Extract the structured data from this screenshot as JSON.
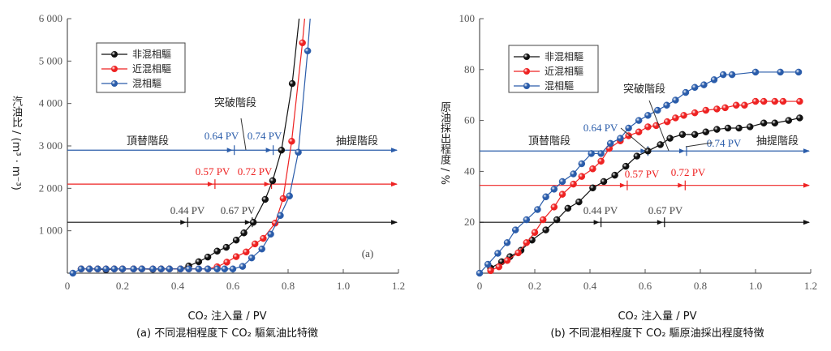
{
  "colors": {
    "black": "#111111",
    "red": "#ee2222",
    "blue": "#2a5caa"
  },
  "chart_data": [
    {
      "type": "line",
      "panel_label": "(a)",
      "xlabel": "CO₂ 注入量 / PV",
      "ylabel": "汽油比 / (m³ · m⁻³)",
      "caption": "(a) 不同混相程度下 CO₂ 驅氣油比特徵",
      "xlim": [
        0,
        1.2
      ],
      "ylim": [
        0,
        6000
      ],
      "xticks": [
        0,
        0.2,
        0.4,
        0.6,
        0.8,
        1.0,
        1.2
      ],
      "xtick_labels": [
        "0",
        "0.2",
        "0.4",
        "0.6",
        "0.8",
        "1.0",
        "1.2"
      ],
      "yticks": [
        1000,
        2000,
        3000,
        4000,
        5000,
        6000
      ],
      "ytick_labels": [
        "1 000",
        "2 000",
        "3 000",
        "4 000",
        "5 000",
        "6 000"
      ],
      "legend": {
        "position": "top-left",
        "entries": [
          "非混相驅",
          "近混相驅",
          "混相驅"
        ]
      },
      "series": [
        {
          "name": "非混相驅",
          "color": "black",
          "x": [
            0.05,
            0.08,
            0.11,
            0.14,
            0.17,
            0.2,
            0.24,
            0.27,
            0.31,
            0.34,
            0.37,
            0.41,
            0.44,
            0.476,
            0.509,
            0.543,
            0.576,
            0.612,
            0.64,
            0.674,
            0.717,
            0.744,
            0.776,
            0.815
          ],
          "y": [
            100,
            100,
            100,
            80,
            100,
            100,
            100,
            100,
            90,
            100,
            100,
            100,
            170,
            270,
            380,
            520,
            610,
            780,
            950,
            1200,
            1740,
            2180,
            2900,
            4470
          ],
          "line_end": [
            0.84,
            6000
          ]
        },
        {
          "name": "近混相驅",
          "color": "red",
          "x": [
            0.05,
            0.08,
            0.11,
            0.14,
            0.17,
            0.2,
            0.24,
            0.27,
            0.31,
            0.34,
            0.37,
            0.41,
            0.44,
            0.476,
            0.509,
            0.543,
            0.578,
            0.612,
            0.648,
            0.68,
            0.71,
            0.753,
            0.782,
            0.813,
            0.852
          ],
          "y": [
            100,
            100,
            100,
            100,
            100,
            100,
            100,
            100,
            100,
            100,
            100,
            100,
            100,
            100,
            100,
            150,
            260,
            390,
            500,
            690,
            820,
            1180,
            1760,
            3110,
            5430
          ],
          "line_end": [
            0.86,
            6000
          ]
        },
        {
          "name": "混相驅",
          "color": "blue",
          "x": [
            0.02,
            0.05,
            0.08,
            0.11,
            0.14,
            0.17,
            0.2,
            0.24,
            0.27,
            0.31,
            0.34,
            0.37,
            0.41,
            0.44,
            0.476,
            0.509,
            0.543,
            0.57,
            0.6,
            0.635,
            0.668,
            0.705,
            0.737,
            0.772,
            0.805,
            0.837,
            0.871
          ],
          "y": [
            0,
            100,
            100,
            100,
            100,
            100,
            100,
            100,
            100,
            100,
            100,
            100,
            100,
            100,
            100,
            100,
            100,
            100,
            100,
            160,
            360,
            570,
            920,
            1360,
            1820,
            2850,
            5240
          ],
          "line_end": [
            0.88,
            6000
          ]
        }
      ],
      "stage_lines": [
        {
          "color": "blue",
          "y": 2900,
          "ticks": [
            0.605,
            0.746
          ],
          "labels": [
            "0.64 PV",
            "0.74 PV"
          ]
        },
        {
          "color": "red",
          "y": 2100,
          "ticks": [
            0.535,
            0.74
          ],
          "labels": [
            "0.57 PV",
            "0.72 PV"
          ]
        },
        {
          "color": "black",
          "y": 1200,
          "ticks": [
            0.436,
            0.67
          ],
          "labels": [
            "0.44 PV",
            "0.67 PV"
          ]
        }
      ],
      "stage_labels": [
        "頂替階段",
        "突破階段",
        "抽提階段"
      ]
    },
    {
      "type": "line",
      "xlabel": "CO₂ 注入量 / PV",
      "ylabel": "原油採出程度 / %",
      "caption": "(b) 不同混相程度下 CO₂ 驅原油採出程度特徵",
      "xlim": [
        0,
        1.2
      ],
      "ylim": [
        0,
        100
      ],
      "xticks": [
        0,
        0.2,
        0.4,
        0.6,
        0.8,
        1.0,
        1.2
      ],
      "xtick_labels": [
        "0",
        "0.2",
        "0.4",
        "0.6",
        "0.8",
        "1.0",
        "1.2"
      ],
      "yticks": [
        20,
        40,
        60,
        80,
        100
      ],
      "ytick_labels": [
        "20",
        "40",
        "60",
        "80",
        "100"
      ],
      "legend": {
        "position": "top-left",
        "entries": [
          "非混相驅",
          "近混相驅",
          "混相驅"
        ]
      },
      "series": [
        {
          "name": "非混相驅",
          "color": "black",
          "x": [
            0.04,
            0.08,
            0.11,
            0.15,
            0.19,
            0.24,
            0.28,
            0.32,
            0.36,
            0.41,
            0.45,
            0.49,
            0.53,
            0.57,
            0.61,
            0.655,
            0.69,
            0.735,
            0.78,
            0.82,
            0.86,
            0.9,
            0.94,
            0.98,
            1.03,
            1.07,
            1.12,
            1.16
          ],
          "y": [
            2,
            4.5,
            6.5,
            9,
            13,
            17,
            21,
            25.5,
            28,
            33.5,
            36,
            38.5,
            42,
            46,
            48,
            50.5,
            53,
            54.5,
            54.5,
            55.5,
            56.5,
            57,
            57,
            57.5,
            59,
            59,
            60,
            61
          ]
        },
        {
          "name": "近混相驅",
          "color": "red",
          "x": [
            0.04,
            0.07,
            0.1,
            0.14,
            0.17,
            0.2,
            0.23,
            0.27,
            0.3,
            0.34,
            0.37,
            0.41,
            0.44,
            0.47,
            0.51,
            0.54,
            0.577,
            0.61,
            0.64,
            0.68,
            0.71,
            0.74,
            0.78,
            0.82,
            0.86,
            0.89,
            0.93,
            0.96,
            1.0,
            1.03,
            1.07,
            1.1,
            1.16
          ],
          "y": [
            1,
            2.5,
            5,
            8,
            12,
            16,
            21,
            26,
            31,
            35,
            38,
            41,
            44,
            49,
            52,
            54,
            55.5,
            57.5,
            58,
            59.5,
            61,
            62,
            63,
            64,
            64.5,
            65,
            66,
            66,
            67.5,
            67.5,
            67.5,
            67.5,
            67.5
          ]
        },
        {
          "name": "混相驅",
          "color": "blue",
          "x": [
            0.0,
            0.03,
            0.066,
            0.1,
            0.13,
            0.17,
            0.21,
            0.24,
            0.27,
            0.3,
            0.34,
            0.37,
            0.405,
            0.44,
            0.474,
            0.51,
            0.54,
            0.577,
            0.61,
            0.645,
            0.678,
            0.71,
            0.747,
            0.78,
            0.813,
            0.85,
            0.883,
            0.915,
            1.0,
            1.09,
            1.156
          ],
          "y": [
            0,
            3.5,
            7.8,
            12,
            17,
            21,
            25,
            30,
            33,
            36,
            39,
            43,
            47,
            47,
            51,
            53,
            57,
            60,
            62,
            64,
            66,
            68,
            71,
            73,
            74,
            76,
            78,
            78,
            79,
            79,
            79
          ]
        }
      ],
      "stage_lines": [
        {
          "color": "blue",
          "y": 48,
          "ticks": [
            0.61,
            0.75
          ],
          "labels": [
            "0.64 PV",
            "0.74 PV"
          ]
        },
        {
          "color": "red",
          "y": 34.5,
          "ticks": [
            0.535,
            0.745
          ],
          "labels": [
            "0.57 PV",
            "0.72 PV"
          ]
        },
        {
          "color": "black",
          "y": 20,
          "ticks": [
            0.44,
            0.67
          ],
          "labels": [
            "0.44 PV",
            "0.67 PV"
          ]
        }
      ],
      "stage_labels": [
        "頂替階段",
        "突破階段",
        "抽提階段"
      ]
    }
  ]
}
